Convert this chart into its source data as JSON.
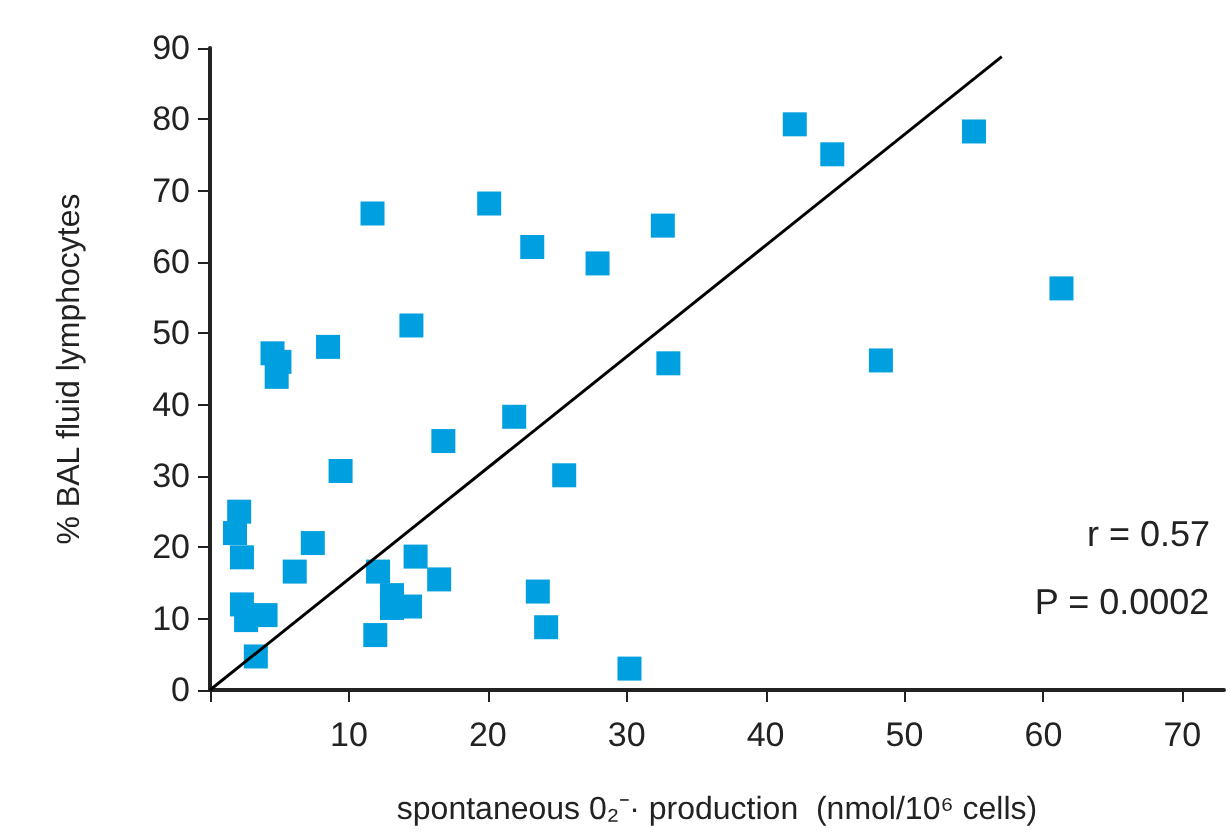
{
  "chart_data": {
    "type": "scatter",
    "xlabel": "spontaneous 0₂⁻· production  (nmol/10⁶ cells)",
    "ylabel": "% BAL fluid lymphocytes",
    "xlim": [
      0,
      73
    ],
    "xticks": [
      {
        "value": 0,
        "label": null
      },
      10,
      20,
      30,
      40,
      50,
      60,
      70
    ],
    "ylim": [
      0,
      90
    ],
    "yticks": [
      0,
      10,
      20,
      30,
      40,
      50,
      60,
      70,
      80,
      90
    ],
    "grid": false,
    "marker": "square",
    "annotations": [
      "r = 0.57",
      "P = 0.0002"
    ],
    "series": [
      {
        "type": "scatter",
        "color": "#009fdf",
        "x": [
          11.7,
          20.1,
          23.2,
          27.9,
          32.6,
          14.5,
          4.5,
          5.0,
          4.8,
          8.5,
          33.0,
          21.9,
          16.8,
          9.4,
          25.5,
          2.1,
          1.8,
          2.3,
          7.4,
          6.1,
          14.8,
          12.1,
          16.5,
          23.6,
          2.3,
          2.6,
          4.0,
          13.1,
          13.1,
          14.4,
          11.9,
          24.2,
          3.3,
          30.2,
          42.1,
          44.8,
          55.0,
          61.3,
          48.3
        ],
        "values": [
          66.8,
          68.2,
          62.1,
          59.8,
          65.1,
          51.1,
          47.2,
          46.0,
          43.9,
          48.1,
          45.8,
          38.3,
          34.9,
          30.7,
          30.1,
          25.0,
          22.0,
          18.6,
          20.6,
          16.6,
          18.7,
          16.6,
          15.5,
          13.8,
          12.0,
          9.8,
          10.5,
          13.3,
          11.5,
          11.7,
          7.7,
          8.8,
          4.7,
          3.0,
          79.3,
          75.1,
          78.3,
          56.3,
          46.2
        ]
      },
      {
        "type": "line",
        "color": "#000000",
        "marker": "none",
        "line_style": "solid",
        "x": [
          0,
          57
        ],
        "values": [
          0,
          88.8
        ]
      }
    ]
  }
}
